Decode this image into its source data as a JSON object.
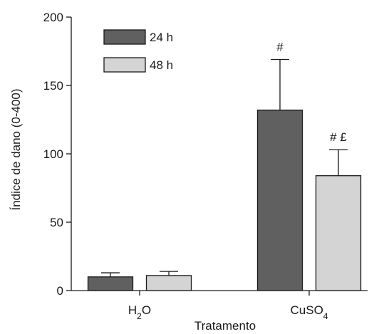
{
  "chart_data": {
    "type": "bar",
    "ylabel": "Índice de dano (0-400)",
    "xlabel": "Tratamento",
    "ylim": [
      0,
      200
    ],
    "yticks": [
      0,
      50,
      100,
      150,
      200
    ],
    "categories": [
      {
        "base": "H",
        "sub": "2",
        "tail": "O"
      },
      {
        "base": "CuSO",
        "sub": "4",
        "tail": ""
      }
    ],
    "series": [
      {
        "name": "24 h",
        "color": "#606060",
        "values": [
          10,
          132
        ],
        "errors": [
          3,
          37
        ]
      },
      {
        "name": "48 h",
        "color": "#d4d4d4",
        "values": [
          11,
          84
        ],
        "errors": [
          3,
          19
        ]
      }
    ],
    "annotations": [
      {
        "category": 1,
        "series": 0,
        "text": "#"
      },
      {
        "category": 1,
        "series": 1,
        "text": "# £"
      }
    ],
    "legend_position": "top-left",
    "grid": false
  }
}
